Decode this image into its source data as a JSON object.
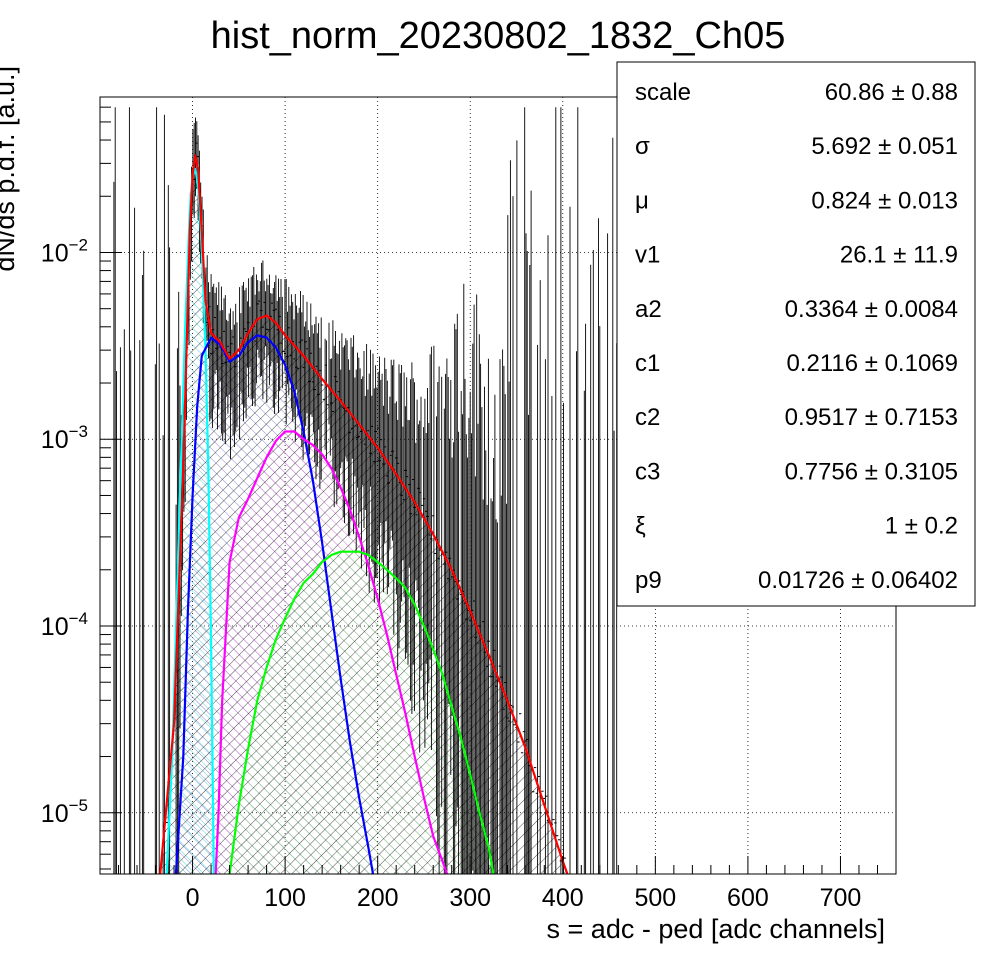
{
  "chart_data": {
    "type": "line",
    "title": "hist_norm_20230802_1832_Ch05",
    "xlabel": "s = adc - ped [adc channels]",
    "ylabel": "dN/ds p.d.f. [a.u.]",
    "xlim": [
      -100,
      760
    ],
    "ylog": true,
    "ylim": [
      4.7e-06,
      0.068
    ],
    "grid": true,
    "x_ticks": [
      0,
      100,
      200,
      300,
      400,
      500,
      600,
      700
    ],
    "y_ticks": [
      {
        "value": 0.01,
        "base": "10",
        "exp": "−2"
      },
      {
        "value": 0.001,
        "base": "10",
        "exp": "−3"
      },
      {
        "value": 0.0001,
        "base": "10",
        "exp": "−4"
      },
      {
        "value": 1e-05,
        "base": "10",
        "exp": "−5"
      }
    ],
    "stats_box": [
      {
        "name": "scale",
        "value": "60.86 ± 0.88"
      },
      {
        "name": "σ",
        "value": "5.692 ± 0.051"
      },
      {
        "name": "μ",
        "value": "0.824 ± 0.013"
      },
      {
        "name": "v1",
        "value": "26.1 ± 11.9"
      },
      {
        "name": "a2",
        "value": "0.3364 ± 0.0084"
      },
      {
        "name": "c1",
        "value": "0.2116 ± 0.1069"
      },
      {
        "name": "c2",
        "value": "0.9517 ± 0.7153"
      },
      {
        "name": "c3",
        "value": "0.7756 ± 0.3105"
      },
      {
        "name": "ξ",
        "value": "1 ± 0.2"
      },
      {
        "name": "p9",
        "value": "0.01726 ± 0.06402"
      }
    ],
    "series": [
      {
        "color": "#ff0000",
        "points": [
          [
            -35,
            4.7e-06
          ],
          [
            -20,
            3e-05
          ],
          [
            -10,
            0.0007
          ],
          [
            -3,
            0.013
          ],
          [
            0,
            0.026
          ],
          [
            3,
            0.033
          ],
          [
            6,
            0.028
          ],
          [
            10,
            0.013
          ],
          [
            14,
            0.0055
          ],
          [
            20,
            0.0037
          ],
          [
            30,
            0.0033
          ],
          [
            40,
            0.0027
          ],
          [
            50,
            0.003
          ],
          [
            60,
            0.0037
          ],
          [
            70,
            0.0044
          ],
          [
            80,
            0.0046
          ],
          [
            90,
            0.0042
          ],
          [
            100,
            0.0036
          ],
          [
            120,
            0.0028
          ],
          [
            140,
            0.0021
          ],
          [
            160,
            0.0016
          ],
          [
            180,
            0.0012
          ],
          [
            200,
            0.0009
          ],
          [
            220,
            0.00065
          ],
          [
            240,
            0.00046
          ],
          [
            260,
            0.00031
          ],
          [
            280,
            0.0002
          ],
          [
            300,
            0.00012
          ],
          [
            320,
            7e-05
          ],
          [
            340,
            4e-05
          ],
          [
            360,
            2.2e-05
          ],
          [
            380,
            1.1e-05
          ],
          [
            400,
            5.5e-06
          ],
          [
            405,
            4.7e-06
          ]
        ]
      },
      {
        "color": "#00ffff",
        "fill": "#8be8e8",
        "points": [
          [
            -28,
            4.7e-06
          ],
          [
            -22,
            2e-05
          ],
          [
            -15,
            0.0003
          ],
          [
            -8,
            0.004
          ],
          [
            -3,
            0.017
          ],
          [
            0,
            0.026
          ],
          [
            3,
            0.028
          ],
          [
            6,
            0.023
          ],
          [
            10,
            0.011
          ],
          [
            14,
            0.003
          ],
          [
            17,
            0.0007
          ],
          [
            20,
            8e-05
          ],
          [
            23,
            4.7e-06
          ]
        ]
      },
      {
        "color": "#0000ff",
        "fill": "#8c8cd9",
        "points": [
          [
            -18,
            4.7e-06
          ],
          [
            -10,
            2e-05
          ],
          [
            -5,
            0.00012
          ],
          [
            0,
            0.0005
          ],
          [
            5,
            0.0015
          ],
          [
            10,
            0.0028
          ],
          [
            20,
            0.0035
          ],
          [
            30,
            0.0032
          ],
          [
            40,
            0.0026
          ],
          [
            50,
            0.0028
          ],
          [
            60,
            0.0033
          ],
          [
            70,
            0.0036
          ],
          [
            80,
            0.0035
          ],
          [
            90,
            0.0031
          ],
          [
            100,
            0.0025
          ],
          [
            110,
            0.0018
          ],
          [
            120,
            0.0011
          ],
          [
            130,
            0.0006
          ],
          [
            140,
            0.00028
          ],
          [
            150,
            0.00012
          ],
          [
            160,
            5.2e-05
          ],
          [
            170,
            2.4e-05
          ],
          [
            180,
            1.2e-05
          ],
          [
            190,
            6.5e-06
          ],
          [
            195,
            4.7e-06
          ]
        ]
      },
      {
        "color": "#ff00ff",
        "fill": "#e69be6",
        "points": [
          [
            25,
            4.7e-06
          ],
          [
            28,
            1e-05
          ],
          [
            32,
            4e-05
          ],
          [
            40,
            0.00022
          ],
          [
            50,
            0.00038
          ],
          [
            60,
            0.00048
          ],
          [
            70,
            0.00062
          ],
          [
            80,
            0.0008
          ],
          [
            90,
            0.00098
          ],
          [
            100,
            0.0011
          ],
          [
            110,
            0.0011
          ],
          [
            120,
            0.001
          ],
          [
            130,
            0.00093
          ],
          [
            140,
            0.00083
          ],
          [
            150,
            0.0007
          ],
          [
            160,
            0.00055
          ],
          [
            170,
            0.00042
          ],
          [
            180,
            0.0003
          ],
          [
            190,
            0.00021
          ],
          [
            200,
            0.00014
          ],
          [
            210,
            9e-05
          ],
          [
            220,
            5.5e-05
          ],
          [
            230,
            3.4e-05
          ],
          [
            240,
            2e-05
          ],
          [
            250,
            1.2e-05
          ],
          [
            260,
            7.5e-06
          ],
          [
            270,
            5.5e-06
          ],
          [
            275,
            4.7e-06
          ]
        ]
      },
      {
        "color": "#00ff00",
        "fill": "#99eb99",
        "points": [
          [
            40,
            4.7e-06
          ],
          [
            50,
            1.1e-05
          ],
          [
            60,
            2.2e-05
          ],
          [
            70,
            4e-05
          ],
          [
            80,
            6e-05
          ],
          [
            90,
            8.5e-05
          ],
          [
            100,
            0.00011
          ],
          [
            110,
            0.00014
          ],
          [
            120,
            0.00017
          ],
          [
            130,
            0.00019
          ],
          [
            140,
            0.00022
          ],
          [
            150,
            0.00024
          ],
          [
            160,
            0.00025
          ],
          [
            170,
            0.00025
          ],
          [
            180,
            0.00025
          ],
          [
            190,
            0.00024
          ],
          [
            200,
            0.00022
          ],
          [
            210,
            0.0002
          ],
          [
            220,
            0.00018
          ],
          [
            230,
            0.00016
          ],
          [
            240,
            0.00013
          ],
          [
            250,
            0.0001
          ],
          [
            260,
            7.5e-05
          ],
          [
            270,
            5.5e-05
          ],
          [
            280,
            3.7e-05
          ],
          [
            290,
            2.5e-05
          ],
          [
            300,
            1.6e-05
          ],
          [
            310,
            1e-05
          ],
          [
            320,
            6.5e-06
          ],
          [
            325,
            4.7e-06
          ]
        ]
      }
    ]
  }
}
